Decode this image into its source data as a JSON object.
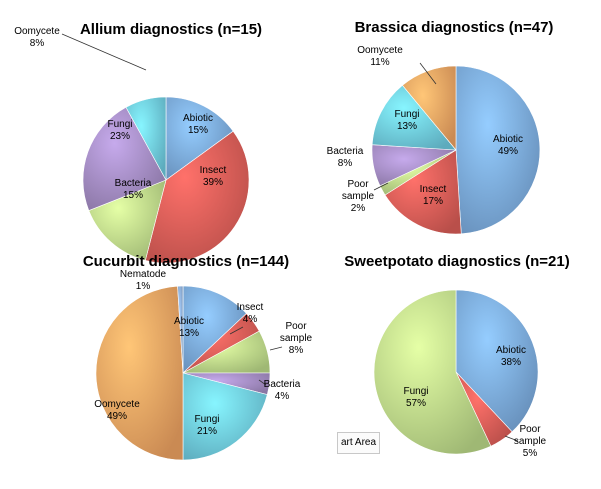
{
  "chart_data": [
    {
      "type": "pie",
      "title": "Allium diagnostics (n=15)",
      "slices": [
        {
          "label": "Abiotic",
          "pct_label": "15%",
          "value": 15,
          "color": "#7eaee3"
        },
        {
          "label": "Insect",
          "pct_label": "39%",
          "value": 39,
          "color": "#e2605a"
        },
        {
          "label": "Bacteria",
          "pct_label": "15%",
          "value": 15,
          "color": "#c2e08d"
        },
        {
          "label": "Fungi",
          "pct_label": "23%",
          "value": 23,
          "color": "#a890c8"
        },
        {
          "label": "Oomycete",
          "pct_label": "8%",
          "value": 8,
          "color": "#72d0e6"
        }
      ]
    },
    {
      "type": "pie",
      "title": "Brassica diagnostics (n=47)",
      "slices": [
        {
          "label": "Abiotic",
          "pct_label": "49%",
          "value": 49,
          "color": "#7eaee3"
        },
        {
          "label": "Insect",
          "pct_label": "17%",
          "value": 17,
          "color": "#e2605a"
        },
        {
          "label": "Poor sample",
          "pct_label": "2%",
          "value": 2,
          "color": "#c2e08d"
        },
        {
          "label": "Bacteria",
          "pct_label": "8%",
          "value": 8,
          "color": "#a890c8"
        },
        {
          "label": "Fungi",
          "pct_label": "13%",
          "value": 13,
          "color": "#72d0e6"
        },
        {
          "label": "Oomycete",
          "pct_label": "11%",
          "value": 11,
          "color": "#f6a865"
        }
      ]
    },
    {
      "type": "pie",
      "title": "Cucurbit diagnostics (n=144)",
      "slices": [
        {
          "label": "Abiotic",
          "pct_label": "13%",
          "value": 13,
          "color": "#7eaee3"
        },
        {
          "label": "Insect",
          "pct_label": "4%",
          "value": 4,
          "color": "#e2605a"
        },
        {
          "label": "Poor sample",
          "pct_label": "8%",
          "value": 8,
          "color": "#c2e08d"
        },
        {
          "label": "Bacteria",
          "pct_label": "4%",
          "value": 4,
          "color": "#a890c8"
        },
        {
          "label": "Fungi",
          "pct_label": "21%",
          "value": 21,
          "color": "#72d0e6"
        },
        {
          "label": "Oomycete",
          "pct_label": "49%",
          "value": 49,
          "color": "#f6a865"
        },
        {
          "label": "Nematode",
          "pct_label": "1%",
          "value": 1,
          "color": "#8fb0d8"
        }
      ]
    },
    {
      "type": "pie",
      "title": "Sweetpotato diagnostics (n=21)",
      "slices": [
        {
          "label": "Abiotic",
          "pct_label": "38%",
          "value": 38,
          "color": "#7eaee3"
        },
        {
          "label": "Poor sample",
          "pct_label": "5%",
          "value": 5,
          "color": "#e2605a"
        },
        {
          "label": "Fungi",
          "pct_label": "57%",
          "value": 57,
          "color": "#c2e08d"
        }
      ]
    }
  ],
  "tooltip": "art Area"
}
